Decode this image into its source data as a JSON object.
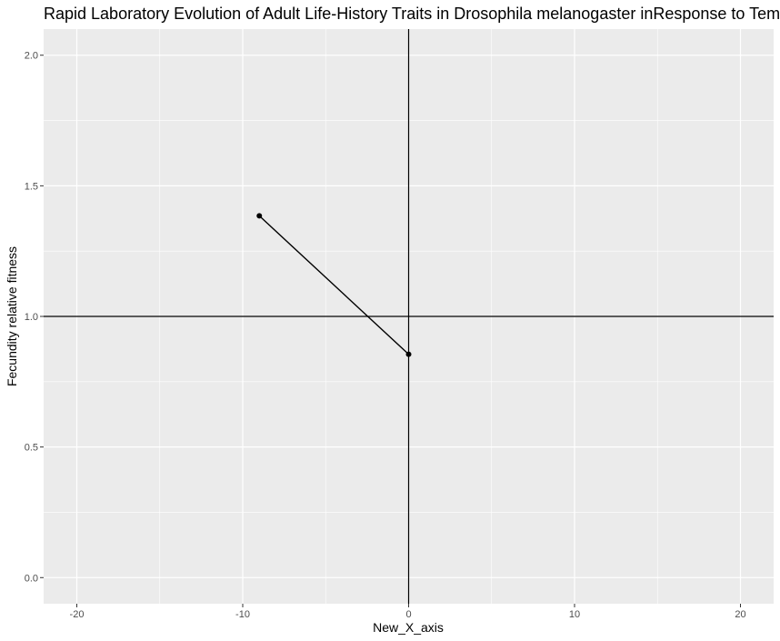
{
  "chart_data": {
    "type": "line",
    "title": "Rapid Laboratory Evolution of Adult Life-History Traits in Drosophila melanogaster inResponse to Tem",
    "xlabel": "New_X_axis",
    "ylabel": "Fecundity relative fitness",
    "xlim": [
      -22,
      22
    ],
    "ylim": [
      -0.1,
      2.1
    ],
    "x_ticks": [
      -20,
      -10,
      0,
      10,
      20
    ],
    "x_tick_labels": [
      "-20",
      "-10",
      "0",
      "10",
      "20"
    ],
    "y_ticks": [
      0.0,
      0.5,
      1.0,
      1.5,
      2.0
    ],
    "y_tick_labels": [
      "0.0",
      "0.5",
      "1.0",
      "1.5",
      "2.0"
    ],
    "grid": true,
    "reference_lines": {
      "vertical_x": 0,
      "horizontal_y": 1.0
    },
    "series": [
      {
        "x": [
          -9,
          0
        ],
        "y": [
          1.385,
          0.855
        ]
      }
    ],
    "colors": {
      "panel": "#ebebeb",
      "grid": "#ffffff",
      "line": "#000000"
    }
  }
}
